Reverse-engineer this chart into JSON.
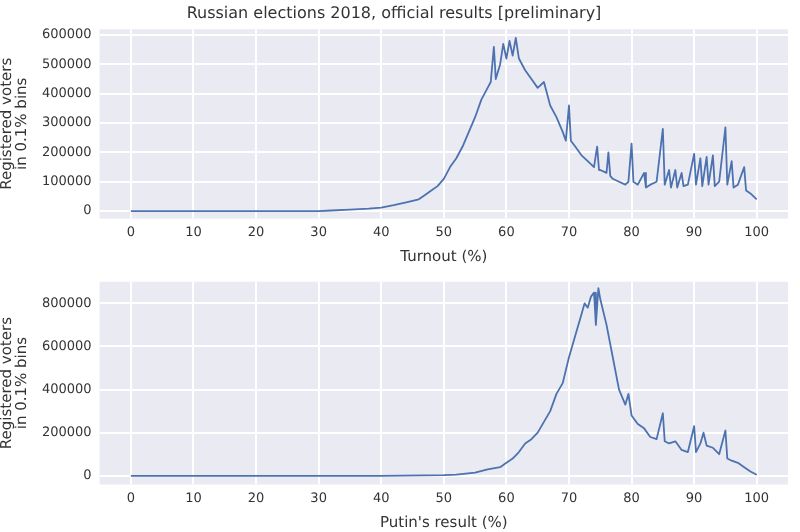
{
  "chart_data": [
    {
      "type": "line",
      "title": "Russian elections 2018, official results [preliminary]",
      "xlabel": "Turnout (%)",
      "ylabel": "Registered voters\nin 0.1% bins",
      "xlim": [
        -5,
        105
      ],
      "xticks": [
        0,
        10,
        20,
        30,
        40,
        50,
        60,
        70,
        80,
        90,
        100
      ],
      "ylim": [
        -25000,
        620000
      ],
      "yticks": [
        0,
        100000,
        200000,
        300000,
        400000,
        500000,
        600000
      ],
      "grid": true,
      "legend": false,
      "marker": "none",
      "line_style": "solid",
      "series": [
        {
          "color": "#4c72b0",
          "x": [
            0,
            10,
            20,
            30,
            32,
            35,
            38,
            40,
            42,
            44,
            46,
            47,
            48,
            49,
            50,
            51,
            52,
            53,
            54,
            55,
            56,
            57,
            57.5,
            58,
            58.3,
            59,
            59.5,
            60,
            60.5,
            61,
            61.5,
            62,
            63,
            64,
            65,
            66,
            67,
            68,
            69,
            69.5,
            70,
            70.3,
            71,
            72,
            73,
            74,
            74.5,
            74.8,
            75,
            76,
            76.3,
            76.6,
            77,
            78,
            79,
            79.5,
            80,
            80.3,
            81,
            82,
            82.3,
            83,
            84,
            85,
            85.3,
            86,
            86.3,
            87,
            87.3,
            88,
            88.3,
            89,
            90,
            90.3,
            91,
            91.3,
            92,
            92.3,
            93,
            93.3,
            94,
            95,
            95.3,
            96,
            96.3,
            97,
            98,
            98.3,
            99,
            100
          ],
          "values": [
            0,
            0,
            0,
            0,
            2000,
            5000,
            8000,
            12000,
            20000,
            30000,
            40000,
            55000,
            70000,
            85000,
            110000,
            150000,
            180000,
            220000,
            270000,
            320000,
            380000,
            420000,
            440000,
            560000,
            450000,
            500000,
            570000,
            520000,
            580000,
            530000,
            590000,
            520000,
            480000,
            450000,
            420000,
            440000,
            360000,
            320000,
            270000,
            240000,
            360000,
            240000,
            220000,
            190000,
            170000,
            150000,
            220000,
            140000,
            140000,
            130000,
            200000,
            120000,
            110000,
            100000,
            90000,
            100000,
            230000,
            100000,
            90000,
            130000,
            80000,
            90000,
            100000,
            280000,
            90000,
            140000,
            80000,
            140000,
            80000,
            130000,
            85000,
            90000,
            195000,
            90000,
            180000,
            85000,
            185000,
            90000,
            190000,
            85000,
            100000,
            285000,
            90000,
            170000,
            80000,
            90000,
            150000,
            70000,
            60000,
            40000
          ]
        }
      ]
    },
    {
      "type": "line",
      "xlabel": "Putin's result (%)",
      "ylabel": "Registered voters\nin 0.1% bins",
      "xlim": [
        -5,
        105
      ],
      "xticks": [
        0,
        10,
        20,
        30,
        40,
        50,
        60,
        70,
        80,
        90,
        100
      ],
      "ylim": [
        -40000,
        900000
      ],
      "yticks": [
        0,
        200000,
        400000,
        600000,
        800000
      ],
      "grid": true,
      "legend": false,
      "marker": "none",
      "line_style": "solid",
      "series": [
        {
          "color": "#4c72b0",
          "x": [
            0,
            10,
            20,
            30,
            40,
            50,
            52,
            55,
            57,
            59,
            60,
            61,
            62,
            63,
            64,
            65,
            66,
            67,
            68,
            69,
            70,
            71,
            72,
            72.5,
            73,
            73.5,
            74,
            74.3,
            74.7,
            75,
            76,
            77,
            78,
            79,
            79.5,
            80,
            81,
            82,
            83,
            84,
            85,
            85.3,
            86,
            87,
            88,
            89,
            90,
            90.3,
            91,
            91.5,
            92,
            93,
            94,
            95,
            95.3,
            96,
            97,
            98,
            99,
            100
          ],
          "values": [
            0,
            0,
            0,
            0,
            0,
            3000,
            5000,
            15000,
            30000,
            40000,
            60000,
            80000,
            110000,
            150000,
            170000,
            200000,
            250000,
            300000,
            380000,
            430000,
            550000,
            650000,
            750000,
            800000,
            780000,
            830000,
            850000,
            700000,
            870000,
            820000,
            700000,
            550000,
            400000,
            330000,
            380000,
            280000,
            240000,
            220000,
            180000,
            170000,
            290000,
            160000,
            150000,
            160000,
            120000,
            110000,
            230000,
            110000,
            150000,
            200000,
            140000,
            130000,
            100000,
            210000,
            80000,
            70000,
            60000,
            40000,
            20000,
            5000
          ]
        }
      ]
    }
  ]
}
